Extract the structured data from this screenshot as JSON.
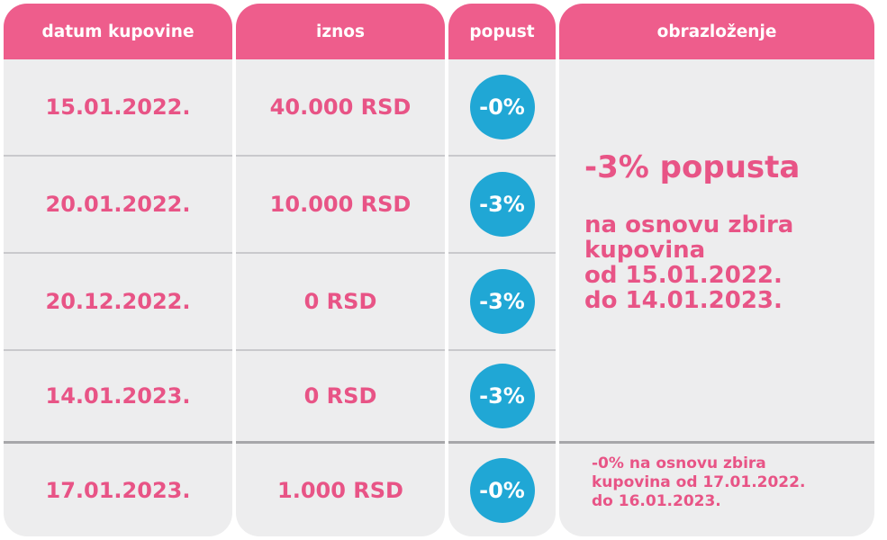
{
  "headers": {
    "date": "datum kupovine",
    "amount": "iznos",
    "discount": "popust",
    "explanation": "obrazloženje"
  },
  "rows": [
    {
      "date": "15.01.2022.",
      "amount": "40.000 RSD",
      "discount": "-0%"
    },
    {
      "date": "20.01.2022.",
      "amount": "10.000 RSD",
      "discount": "-3%"
    },
    {
      "date": "20.12.2022.",
      "amount": "0 RSD",
      "discount": "-3%"
    },
    {
      "date": "14.01.2023.",
      "amount": "0 RSD",
      "discount": "-3%"
    },
    {
      "date": "17.01.2023.",
      "amount": "1.000 RSD",
      "discount": "-0%"
    }
  ],
  "explanation_main": {
    "headline": "-3% popusta",
    "lines": [
      "na osnovu zbira",
      "kupovina",
      "od 15.01.2022.",
      "do 14.01.2023."
    ]
  },
  "explanation_last": {
    "lines": [
      "-0% na osnovu zbira",
      "kupovina od 17.01.2022.",
      "do 16.01.2023."
    ]
  },
  "colors": {
    "header_bg": "#ee5d8c",
    "text_pink": "#e85486",
    "badge_blue": "#20a7d5",
    "cell_bg": "#ededee"
  }
}
